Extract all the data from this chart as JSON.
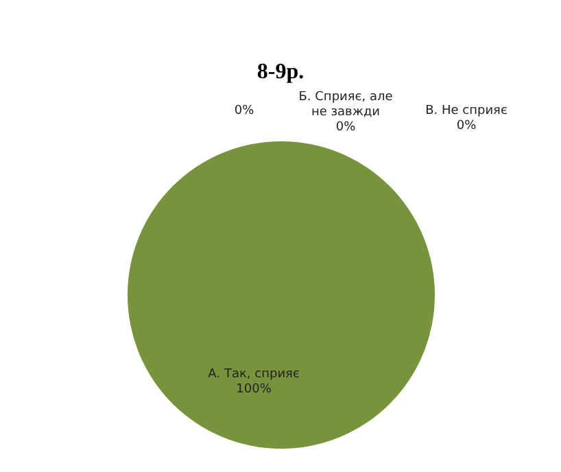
{
  "chart_data": {
    "type": "pie",
    "title": "8-9р.",
    "categories": [
      "А. Так, сприяє",
      null,
      "Б. Сприяє, але не завжди",
      "В. Не сприяє"
    ],
    "values": [
      100,
      0,
      0,
      0
    ],
    "colors": [
      "#77933c",
      "#4f81bd",
      "#c0504d",
      "#8064a2"
    ],
    "value_labels": [
      "100%",
      "0%",
      "0%",
      "0%"
    ],
    "legend": false
  }
}
